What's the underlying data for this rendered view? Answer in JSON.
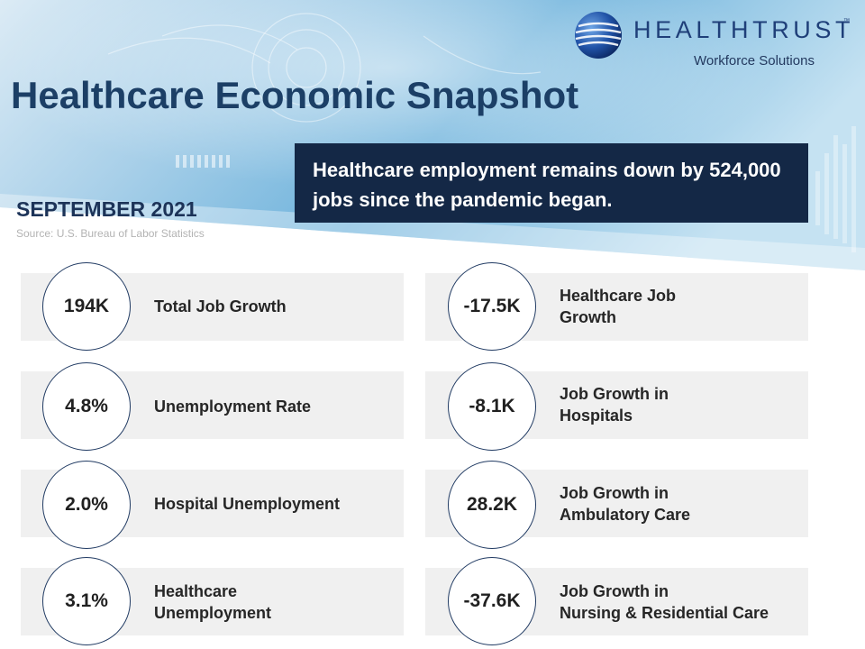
{
  "header": {
    "title": "Healthcare Economic Snapshot",
    "headline": "Healthcare employment remains down by 524,000 jobs since the pandemic began.",
    "date": "SEPTEMBER 2021",
    "source": "Source: U.S. Bureau of Labor Statistics"
  },
  "logo": {
    "brand": "HEALTHTRUST",
    "trademark": "™",
    "tagline": "Workforce Solutions",
    "icon": "globe-icon"
  },
  "colors": {
    "title": "#1c3f66",
    "headline_bg": "#142846",
    "card_bg": "#f0f0f0",
    "circle_border": "#213b63",
    "banner_light": "#cfe6f3",
    "banner_dark": "#5aa3cc"
  },
  "stats_left": [
    {
      "value": "194K",
      "label": "Total Job Growth"
    },
    {
      "value": "4.8%",
      "label": "Unemployment  Rate"
    },
    {
      "value": "2.0%",
      "label": "Hospital Unemployment"
    },
    {
      "value": "3.1%",
      "label": "Healthcare\nUnemployment"
    }
  ],
  "stats_right": [
    {
      "value": "-17.5K",
      "label": "Healthcare Job\nGrowth"
    },
    {
      "value": "-8.1K",
      "label": "Job Growth in\nHospitals"
    },
    {
      "value": "28.2K",
      "label": "Job Growth in\nAmbulatory Care"
    },
    {
      "value": "-37.6K",
      "label": "Job Growth in\nNursing & Residential Care"
    }
  ]
}
